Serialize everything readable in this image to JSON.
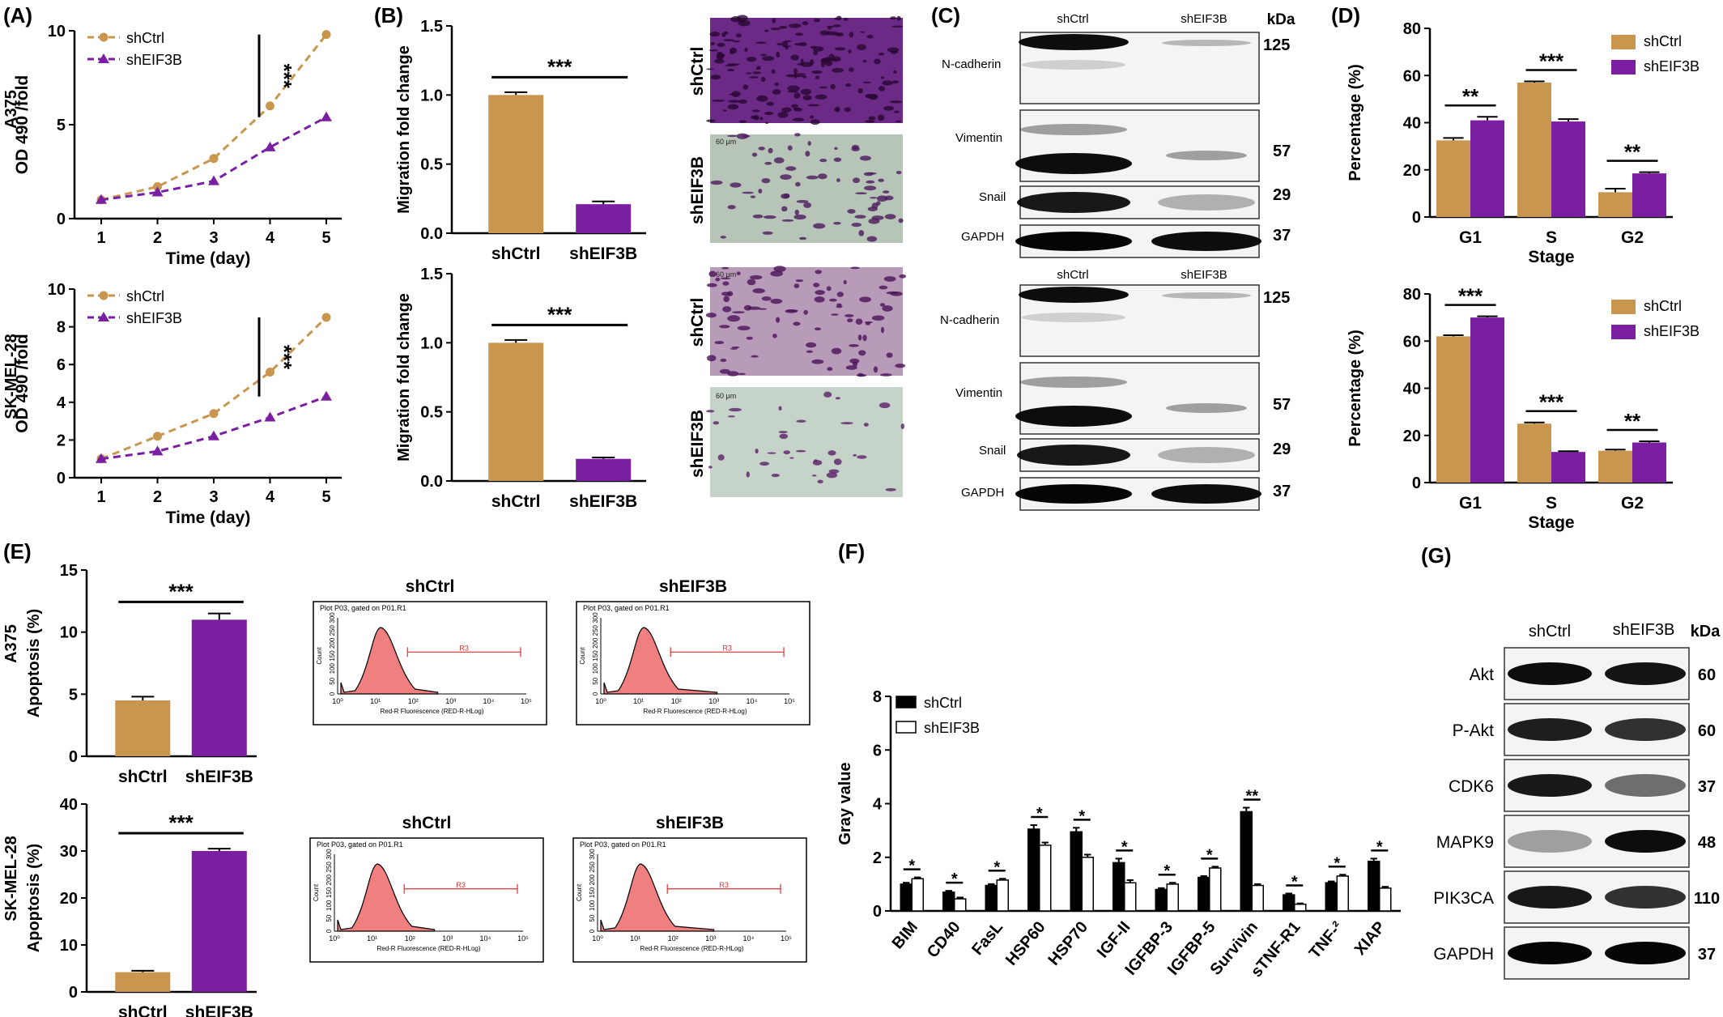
{
  "colors": {
    "ctrl": "#c8964e",
    "eif": "#7b1fa2",
    "black": "#000000",
    "flow_fill": "#f08080"
  },
  "panels": {
    "A": {
      "label": "(A)",
      "xlabel": "Time (day)",
      "ylabel": "OD 490 /fold",
      "sig": "***",
      "legend": [
        "shCtrl",
        "shEIF3B"
      ],
      "rows": [
        "A375",
        "SK-MEL-28"
      ]
    },
    "B": {
      "label": "(B)",
      "ylabel": "Migration fold change",
      "sig": "***",
      "image_labels": [
        "shCtrl",
        "shEIF3B",
        "shCtrl",
        "shEIF3B"
      ],
      "scale_bar": "60 μm"
    },
    "C": {
      "label": "(C)",
      "kda": "kDa",
      "lane_labels": [
        "shCtrl",
        "shEIF3B"
      ],
      "proteins": [
        "N-cadherin",
        "Vimentin",
        "Snail",
        "GAPDH"
      ],
      "weights": [
        "125",
        "57",
        "29",
        "37"
      ]
    },
    "D": {
      "label": "(D)",
      "ylabel": "Percentage (%)",
      "xlabel": "Stage",
      "legend": [
        "shCtrl",
        "shEIF3B"
      ]
    },
    "E": {
      "label": "(E)",
      "ylabel": "Apoptosis (%)",
      "sig": "***",
      "rows": [
        "A375",
        "SK-MEL-28"
      ],
      "flow_titles": [
        "shCtrl",
        "shEIF3B"
      ],
      "flow_header": "Plot P03, gated on P01.R1",
      "flow_xlabel": "Red-R Fluorescence (RED-R-HLog)",
      "flow_ylabel": "Count",
      "flow_gate": "R3",
      "flow_yticks": [
        "0",
        "50",
        "100",
        "150",
        "200",
        "250",
        "300"
      ],
      "flow_xticks": [
        "10⁰",
        "10¹",
        "10²",
        "10³",
        "10⁴",
        "10⁵"
      ]
    },
    "F": {
      "label": "(F)",
      "ylabel": "Gray value",
      "legend": [
        "shCtrl",
        "shEIF3B"
      ]
    },
    "G": {
      "label": "(G)",
      "kda": "kDa",
      "lane_labels": [
        "shCtrl",
        "shEIF3B"
      ],
      "proteins": [
        "Akt",
        "P-Akt",
        "CDK6",
        "MAPK9",
        "PIK3CA",
        "GAPDH"
      ],
      "weights": [
        "60",
        "60",
        "37",
        "48",
        "110",
        "37"
      ]
    }
  },
  "chart_data": [
    {
      "id": "A-top",
      "type": "line",
      "row": "A375",
      "ylabel": "OD 490 /fold",
      "xlabel": "Time (day)",
      "x": [
        1,
        2,
        3,
        4,
        5
      ],
      "ylim": [
        0,
        10
      ],
      "yticks": [
        0,
        5,
        10
      ],
      "series": [
        {
          "name": "shCtrl",
          "values": [
            1.0,
            1.7,
            3.2,
            6.0,
            9.8
          ]
        },
        {
          "name": "shEIF3B",
          "values": [
            1.0,
            1.4,
            2.0,
            3.8,
            5.4
          ]
        }
      ],
      "annotation": "***"
    },
    {
      "id": "A-bottom",
      "type": "line",
      "row": "SK-MEL-28",
      "ylabel": "OD 490 /fold",
      "xlabel": "Time (day)",
      "x": [
        1,
        2,
        3,
        4,
        5
      ],
      "ylim": [
        0,
        10
      ],
      "yticks": [
        0,
        2,
        4,
        6,
        8,
        10
      ],
      "series": [
        {
          "name": "shCtrl",
          "values": [
            1.0,
            2.2,
            3.4,
            5.6,
            8.5
          ]
        },
        {
          "name": "shEIF3B",
          "values": [
            1.0,
            1.4,
            2.2,
            3.2,
            4.3
          ]
        }
      ],
      "annotation": "***"
    },
    {
      "id": "B-top",
      "type": "bar",
      "ylabel": "Migration fold change",
      "categories": [
        "shCtrl",
        "shEIF3B"
      ],
      "values": [
        1.0,
        0.21
      ],
      "errors": [
        0.02,
        0.02
      ],
      "ylim": [
        0,
        1.5
      ],
      "yticks": [
        0.0,
        0.5,
        1.0,
        1.5
      ],
      "annotation": "***"
    },
    {
      "id": "B-bottom",
      "type": "bar",
      "ylabel": "Migration fold change",
      "categories": [
        "shCtrl",
        "shEIF3B"
      ],
      "values": [
        1.0,
        0.16
      ],
      "errors": [
        0.02,
        0.01
      ],
      "ylim": [
        0,
        1.5
      ],
      "yticks": [
        0.0,
        0.5,
        1.0,
        1.5
      ],
      "annotation": "***"
    },
    {
      "id": "D-top",
      "type": "bar",
      "ylabel": "Percentage (%)",
      "xlabel": "Stage",
      "categories": [
        "G1",
        "S",
        "G2"
      ],
      "ylim": [
        0,
        80
      ],
      "yticks": [
        0,
        20,
        40,
        60,
        80
      ],
      "series": [
        {
          "name": "shCtrl",
          "values": [
            32.5,
            57,
            10.5
          ],
          "errors": [
            1,
            0.5,
            1.5
          ]
        },
        {
          "name": "shEIF3B",
          "values": [
            41,
            40.5,
            18.5
          ],
          "errors": [
            1.5,
            1,
            0.5
          ]
        }
      ],
      "annotations": [
        "**",
        "***",
        "**"
      ]
    },
    {
      "id": "D-bottom",
      "type": "bar",
      "ylabel": "Percentage (%)",
      "xlabel": "Stage",
      "categories": [
        "G1",
        "S",
        "G2"
      ],
      "ylim": [
        0,
        80
      ],
      "yticks": [
        0,
        20,
        40,
        60,
        80
      ],
      "series": [
        {
          "name": "shCtrl",
          "values": [
            62,
            25,
            13.5
          ],
          "errors": [
            0.5,
            0.5,
            0.5
          ]
        },
        {
          "name": "shEIF3B",
          "values": [
            70,
            13,
            17
          ],
          "errors": [
            0.5,
            0.3,
            0.5
          ]
        }
      ],
      "annotations": [
        "***",
        "***",
        "**"
      ]
    },
    {
      "id": "E-top",
      "type": "bar",
      "row": "A375",
      "ylabel": "Apoptosis (%)",
      "categories": [
        "shCtrl",
        "shEIF3B"
      ],
      "values": [
        4.5,
        11.0
      ],
      "errors": [
        0.3,
        0.5
      ],
      "ylim": [
        0,
        15
      ],
      "yticks": [
        0,
        5,
        10,
        15
      ],
      "annotation": "***"
    },
    {
      "id": "E-bottom",
      "type": "bar",
      "row": "SK-MEL-28",
      "ylabel": "Apoptosis (%)",
      "categories": [
        "shCtrl",
        "shEIF3B"
      ],
      "values": [
        4.2,
        30.0
      ],
      "errors": [
        0.3,
        0.5
      ],
      "ylim": [
        0,
        40
      ],
      "yticks": [
        0,
        10,
        20,
        30,
        40
      ],
      "annotation": "***"
    },
    {
      "id": "F",
      "type": "bar",
      "ylabel": "Gray value",
      "categories": [
        "BIM",
        "CD40",
        "FasL",
        "HSP60",
        "HSP70",
        "IGF-II",
        "IGFBP-3",
        "IGFBP-5",
        "Survivin",
        "sTNF-R1",
        "TNF-²",
        "XIAP"
      ],
      "ylim": [
        0,
        8
      ],
      "yticks": [
        0,
        2,
        4,
        6,
        8
      ],
      "series": [
        {
          "name": "shCtrl",
          "values": [
            1.0,
            0.7,
            0.95,
            3.05,
            2.95,
            1.8,
            0.8,
            1.25,
            3.7,
            0.6,
            1.05,
            1.85
          ],
          "errors": [
            0.05,
            0.05,
            0.05,
            0.15,
            0.15,
            0.15,
            0.05,
            0.05,
            0.15,
            0.05,
            0.05,
            0.1
          ]
        },
        {
          "name": "shEIF3B",
          "values": [
            1.2,
            0.45,
            1.15,
            2.45,
            2.0,
            1.05,
            1.0,
            1.6,
            0.95,
            0.25,
            1.3,
            0.85
          ],
          "errors": [
            0.05,
            0.05,
            0.05,
            0.1,
            0.1,
            0.1,
            0.05,
            0.05,
            0.05,
            0.03,
            0.05,
            0.05
          ]
        }
      ],
      "annotations": [
        "*",
        "*",
        "*",
        "*",
        "*",
        "*",
        "*",
        "*",
        "**",
        "*",
        "*",
        "*"
      ]
    }
  ]
}
